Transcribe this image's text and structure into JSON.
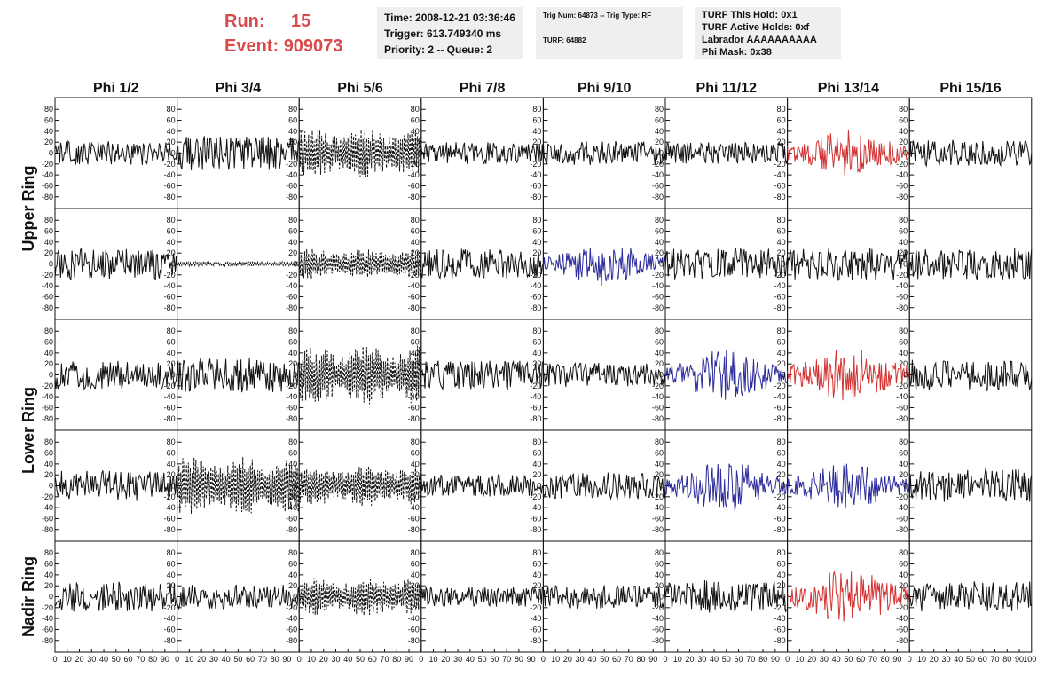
{
  "header": {
    "run_label": "Run:",
    "run_value": "15",
    "event_label": "Event:",
    "event_value": "909073"
  },
  "info_time": {
    "time": "Time: 2008-12-21 03:36:46",
    "trigger": "Trigger: 613.749340 ms",
    "priority": "Priority: 2 -- Queue: 2"
  },
  "info_trig": {
    "trig": "Trig Num: 64873 -- Trig Type: RF",
    "turf": "TURF: 64882"
  },
  "info_turf": {
    "this_hold": "TURF This Hold: 0x1",
    "active_holds": "TURF Active Holds: 0xf",
    "labrador": "Labrador AAAAAAAAAA",
    "phi_mask": "Phi Mask: 0x38"
  },
  "colors": {
    "black": "#111111",
    "red": "#d23232",
    "blue": "#2b2b9a"
  },
  "chart_data": {
    "type": "line",
    "column_titles": [
      "Phi 1/2",
      "Phi 3/4",
      "Phi 5/6",
      "Phi 7/8",
      "Phi 9/10",
      "Phi 11/12",
      "Phi 13/14",
      "Phi 15/16"
    ],
    "ring_titles": [
      {
        "label": "Upper Ring",
        "rows": [
          0,
          1
        ]
      },
      {
        "label": "Lower Ring",
        "rows": [
          2,
          3
        ]
      },
      {
        "label": "Nadir Ring",
        "rows": [
          4
        ]
      }
    ],
    "xlim": [
      0,
      100
    ],
    "ylim": [
      -95,
      95
    ],
    "yticks": [
      -80,
      -60,
      -40,
      -20,
      0,
      20,
      40,
      60,
      80
    ],
    "xticks": [
      0,
      10,
      20,
      30,
      40,
      50,
      60,
      70,
      80,
      90
    ],
    "xtick_last": "100",
    "panels": [
      [
        {
          "color": "black",
          "style": "solid",
          "amp": 22
        },
        {
          "color": "black",
          "style": "solid",
          "amp": 32
        },
        {
          "color": "black",
          "style": "dashed",
          "amp": 45
        },
        {
          "color": "black",
          "style": "solid",
          "amp": 20
        },
        {
          "color": "black",
          "style": "solid",
          "amp": 22
        },
        {
          "color": "black",
          "style": "solid",
          "amp": 20
        },
        {
          "color": "red",
          "style": "solid",
          "amp": 34
        },
        {
          "color": "black",
          "style": "solid",
          "amp": 24
        }
      ],
      [
        {
          "color": "black",
          "style": "solid",
          "amp": 28
        },
        {
          "color": "black",
          "style": "dashed",
          "amp": 5
        },
        {
          "color": "black",
          "style": "dashed",
          "amp": 28
        },
        {
          "color": "black",
          "style": "solid",
          "amp": 28
        },
        {
          "color": "blue",
          "style": "solid",
          "amp": 32
        },
        {
          "color": "black",
          "style": "solid",
          "amp": 28
        },
        {
          "color": "black",
          "style": "solid",
          "amp": 30
        },
        {
          "color": "black",
          "style": "solid",
          "amp": 30
        }
      ],
      [
        {
          "color": "black",
          "style": "solid",
          "amp": 26
        },
        {
          "color": "black",
          "style": "solid",
          "amp": 32
        },
        {
          "color": "black",
          "style": "dashed",
          "amp": 55
        },
        {
          "color": "black",
          "style": "solid",
          "amp": 26
        },
        {
          "color": "black",
          "style": "solid",
          "amp": 22
        },
        {
          "color": "blue",
          "style": "solid",
          "amp": 38
        },
        {
          "color": "red",
          "style": "solid",
          "amp": 40
        },
        {
          "color": "black",
          "style": "solid",
          "amp": 30
        }
      ],
      [
        {
          "color": "black",
          "style": "solid",
          "amp": 28
        },
        {
          "color": "black",
          "style": "dashed",
          "amp": 55
        },
        {
          "color": "black",
          "style": "dashed",
          "amp": 38
        },
        {
          "color": "black",
          "style": "solid",
          "amp": 20
        },
        {
          "color": "black",
          "style": "solid",
          "amp": 24
        },
        {
          "color": "blue",
          "style": "solid",
          "amp": 38
        },
        {
          "color": "blue",
          "style": "solid",
          "amp": 34
        },
        {
          "color": "black",
          "style": "solid",
          "amp": 30
        }
      ],
      [
        {
          "color": "black",
          "style": "solid",
          "amp": 28
        },
        {
          "color": "black",
          "style": "solid",
          "amp": 22
        },
        {
          "color": "black",
          "style": "dashed",
          "amp": 36
        },
        {
          "color": "black",
          "style": "solid",
          "amp": 18
        },
        {
          "color": "black",
          "style": "solid",
          "amp": 22
        },
        {
          "color": "black",
          "style": "solid",
          "amp": 30
        },
        {
          "color": "red",
          "style": "solid",
          "amp": 42
        },
        {
          "color": "black",
          "style": "solid",
          "amp": 28
        }
      ]
    ]
  }
}
